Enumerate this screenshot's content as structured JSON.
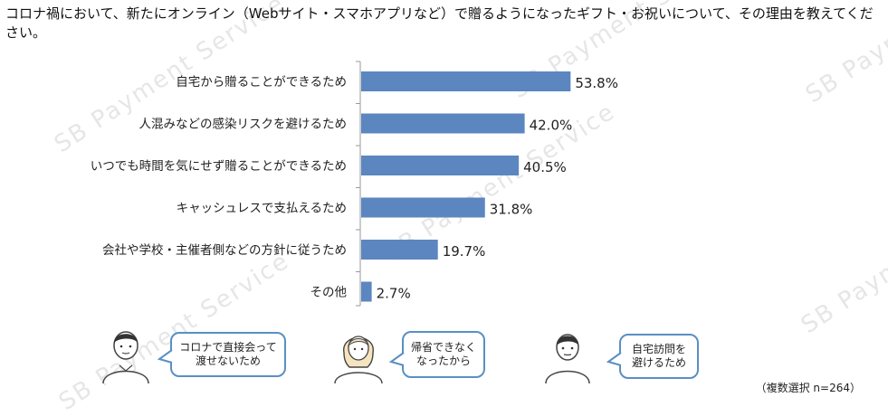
{
  "question": "コロナ禍において、新たにオンライン（Webサイト・スマホアプリなど）で贈るようになったギフト・お祝いについて、その理由を教えてください。",
  "watermark": "SB Payment Service",
  "note": "（複数選択 n=264）",
  "colors": {
    "bar": "#5b86c0",
    "bubble_border": "#5a8fc3",
    "axis": "#9a9a9a"
  },
  "bubbles": [
    "コロナで直接会って\n渡せないため",
    "帰省できなく\nなったから",
    "自宅訪問を\n避けるため"
  ],
  "chart_data": {
    "type": "bar",
    "orientation": "horizontal",
    "categories": [
      "自宅から贈ることができるため",
      "人混みなどの感染リスクを避けるため",
      "いつでも時間を気にせず贈ることができるため",
      "キャッシュレスで支払えるため",
      "会社や学校・主催者側などの方針に従うため",
      "その他"
    ],
    "values": [
      53.8,
      42.0,
      40.5,
      31.8,
      19.7,
      2.7
    ],
    "value_labels": [
      "53.8%",
      "42.0%",
      "40.5%",
      "31.8%",
      "19.7%",
      "2.7%"
    ],
    "unit": "%",
    "xlim": [
      0,
      100
    ],
    "grid": false,
    "legend": "none"
  }
}
